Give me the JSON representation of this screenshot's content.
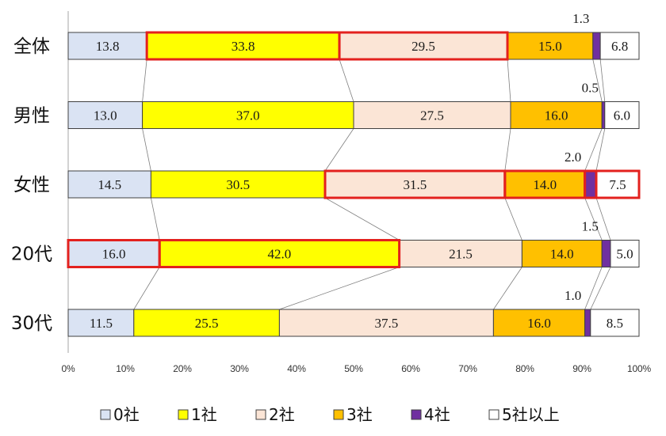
{
  "chart_data": {
    "type": "bar",
    "orientation": "horizontal",
    "stacked": "percent",
    "categories": [
      "全体",
      "男性",
      "女性",
      "20代",
      "30代"
    ],
    "series": [
      {
        "name": "0社",
        "color": "#dae3f3",
        "values": [
          13.8,
          13.0,
          14.5,
          16.0,
          11.5
        ]
      },
      {
        "name": "1社",
        "color": "#ffff00",
        "values": [
          33.8,
          37.0,
          30.5,
          42.0,
          25.5
        ]
      },
      {
        "name": "2社",
        "color": "#fbe5d6",
        "values": [
          29.5,
          27.5,
          31.5,
          21.5,
          37.5
        ]
      },
      {
        "name": "3社",
        "color": "#ffc000",
        "values": [
          15.0,
          16.0,
          14.0,
          14.0,
          16.0
        ]
      },
      {
        "name": "4社",
        "color": "#7030a0",
        "values": [
          1.3,
          0.5,
          2.0,
          1.5,
          1.0
        ]
      },
      {
        "name": "5社以上",
        "color": "#ffffff",
        "values": [
          6.8,
          6.0,
          7.5,
          5.0,
          8.5
        ]
      }
    ],
    "xlim": [
      0,
      100
    ],
    "x_ticks": [
      "0%",
      "10%",
      "20%",
      "30%",
      "40%",
      "50%",
      "60%",
      "70%",
      "80%",
      "90%",
      "100%"
    ],
    "grid": false,
    "legend": "bottom",
    "series_lines": true,
    "label_above_series": "4社",
    "highlight_color": "#e3211e",
    "highlights": [
      {
        "category": "全体",
        "series": [
          "1社",
          "2社"
        ]
      },
      {
        "category": "女性",
        "series": [
          "2社",
          "3社",
          "4社",
          "5社以上"
        ]
      },
      {
        "category": "20代",
        "series": [
          "0社",
          "1社"
        ]
      }
    ]
  }
}
